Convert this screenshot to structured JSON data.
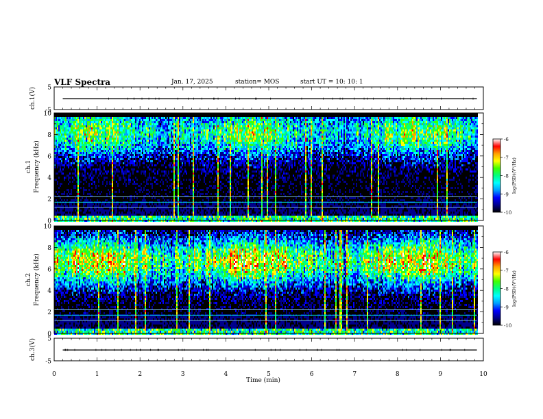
{
  "header": {
    "title": "VLF Spectra",
    "date": "Jan. 17, 2025",
    "station": "station= MOS",
    "start": "start  UT =   10: 10: 1"
  },
  "chart_data": {
    "type": "heatmap",
    "xlabel": "Time  (min)",
    "xlim": [
      0,
      10
    ],
    "x_ticks": [
      "0",
      "1",
      "2",
      "3",
      "4",
      "5",
      "6",
      "7",
      "8",
      "9",
      "10"
    ],
    "panels": [
      {
        "id": "ch1-waveform",
        "kind": "line",
        "ylabel": "ch.1(V)",
        "ylim": [
          -5,
          5
        ],
        "y_ticks": [
          "5",
          "-5"
        ],
        "trace_level": -0.2
      },
      {
        "id": "ch1-spectrogram",
        "kind": "spectrogram",
        "ylabel": "ch.1\nFrequency (kHz)",
        "ylim": [
          0,
          10
        ],
        "y_ticks": [
          "0",
          "2",
          "4",
          "6",
          "8",
          "10"
        ],
        "data_end_min": 9.85,
        "band_peak_khz": 8.2,
        "intensity_scale": 0.75,
        "colorbar": {
          "label": "log(PSD)(V²/Hz)",
          "range": [
            -10,
            -6
          ],
          "ticks": [
            "-6",
            "-7",
            "-8",
            "-9",
            "-10"
          ]
        }
      },
      {
        "id": "ch2-spectrogram",
        "kind": "spectrogram",
        "ylabel": "ch.2\nFrequency (kHz)",
        "ylim": [
          0,
          10
        ],
        "y_ticks": [
          "0",
          "2",
          "4",
          "6",
          "8",
          "10"
        ],
        "data_end_min": 9.85,
        "band_peak_khz": 6.8,
        "intensity_scale": 0.95,
        "colorbar": {
          "label": "log(PSD)(V²/Hz)",
          "range": [
            -10,
            -6
          ],
          "ticks": [
            "-6",
            "-7",
            "-8",
            "-9",
            "-10"
          ]
        }
      },
      {
        "id": "ch3-waveform",
        "kind": "line",
        "ylabel": "ch.3(V)",
        "ylim": [
          -5,
          5
        ],
        "y_ticks": [
          "5",
          "-5"
        ],
        "trace_level": -0.2
      }
    ],
    "colormap": [
      "#000000",
      "#00008c",
      "#0000ff",
      "#00a0ff",
      "#00ffff",
      "#00ff80",
      "#40ff00",
      "#ffff00",
      "#ffa000",
      "#ff0000",
      "#ffffff"
    ]
  }
}
